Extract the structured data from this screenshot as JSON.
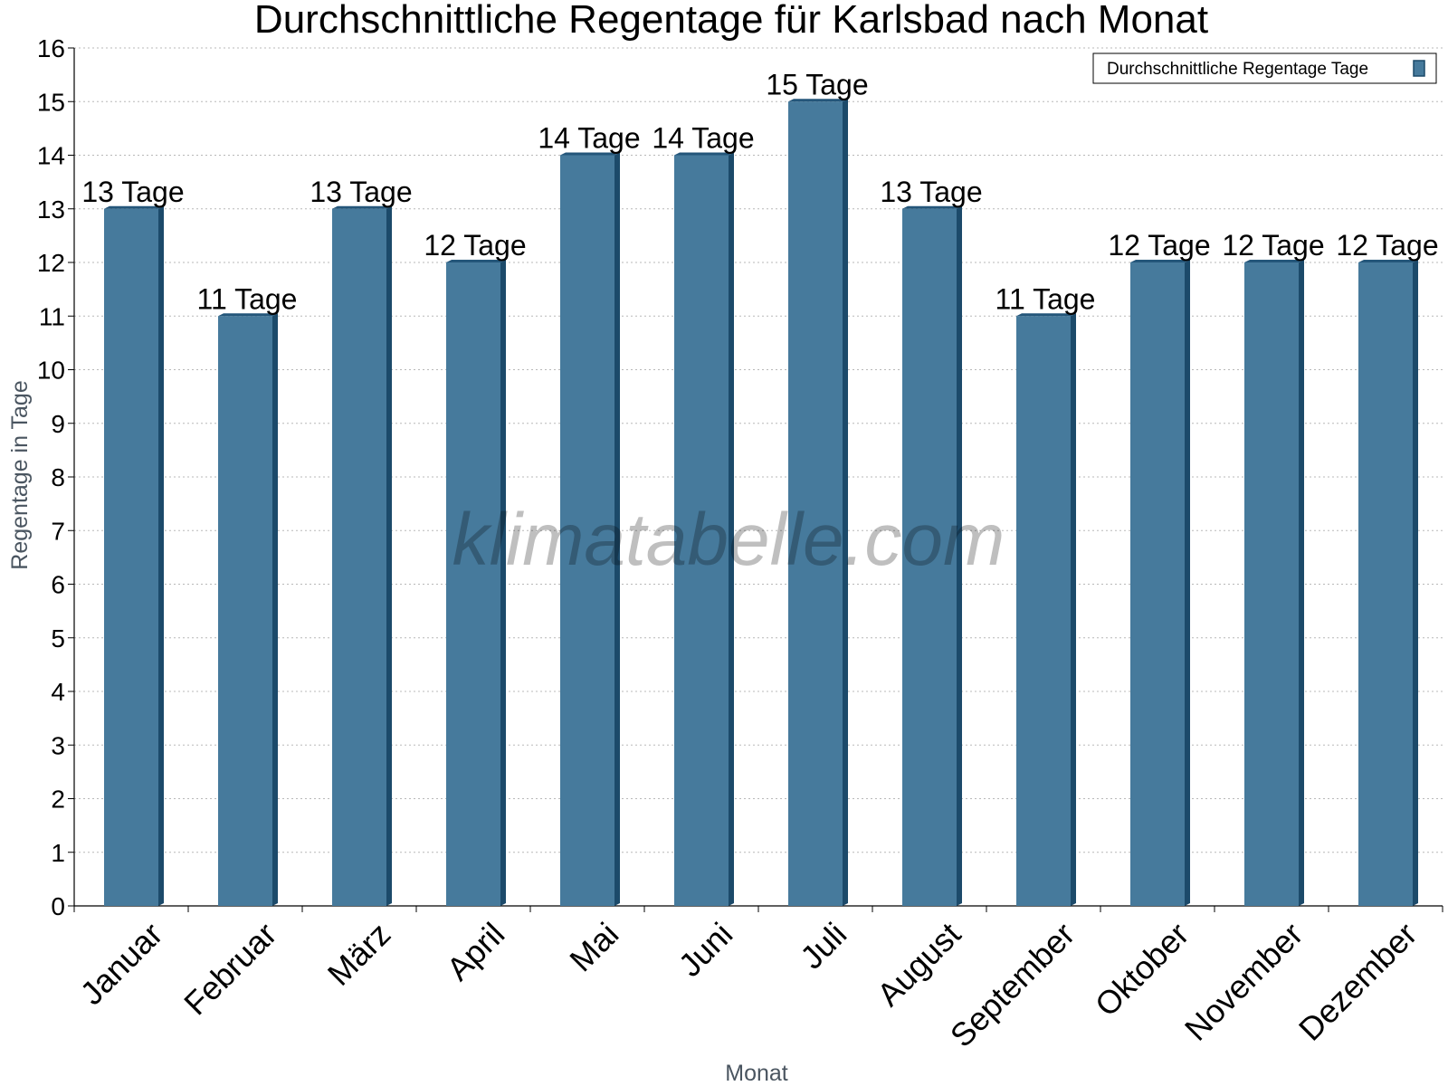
{
  "chart_data": {
    "type": "bar",
    "title": "Durchschnittliche Regentage für Karlsbad nach Monat",
    "xlabel": "Monat",
    "ylabel": "Regentage in Tage",
    "ylim": [
      0,
      16
    ],
    "yticks": [
      0,
      1,
      2,
      3,
      4,
      5,
      6,
      7,
      8,
      9,
      10,
      11,
      12,
      13,
      14,
      15,
      16
    ],
    "grid": true,
    "legend_position": "top-right",
    "categories": [
      "Januar",
      "Februar",
      "März",
      "April",
      "Mai",
      "Juni",
      "Juli",
      "August",
      "September",
      "Oktober",
      "November",
      "Dezember"
    ],
    "series": [
      {
        "name": "Durchschnittliche Regentage Tage",
        "color": "#467a9c",
        "values": [
          13,
          11,
          13,
          12,
          14,
          14,
          15,
          13,
          11,
          12,
          12,
          12
        ],
        "labels": [
          "13 Tage",
          "11 Tage",
          "13 Tage",
          "12 Tage",
          "14 Tage",
          "14 Tage",
          "15 Tage",
          "13 Tage",
          "11 Tage",
          "12 Tage",
          "12 Tage",
          "12 Tage"
        ]
      }
    ]
  },
  "watermark": "klimatabelle.com"
}
